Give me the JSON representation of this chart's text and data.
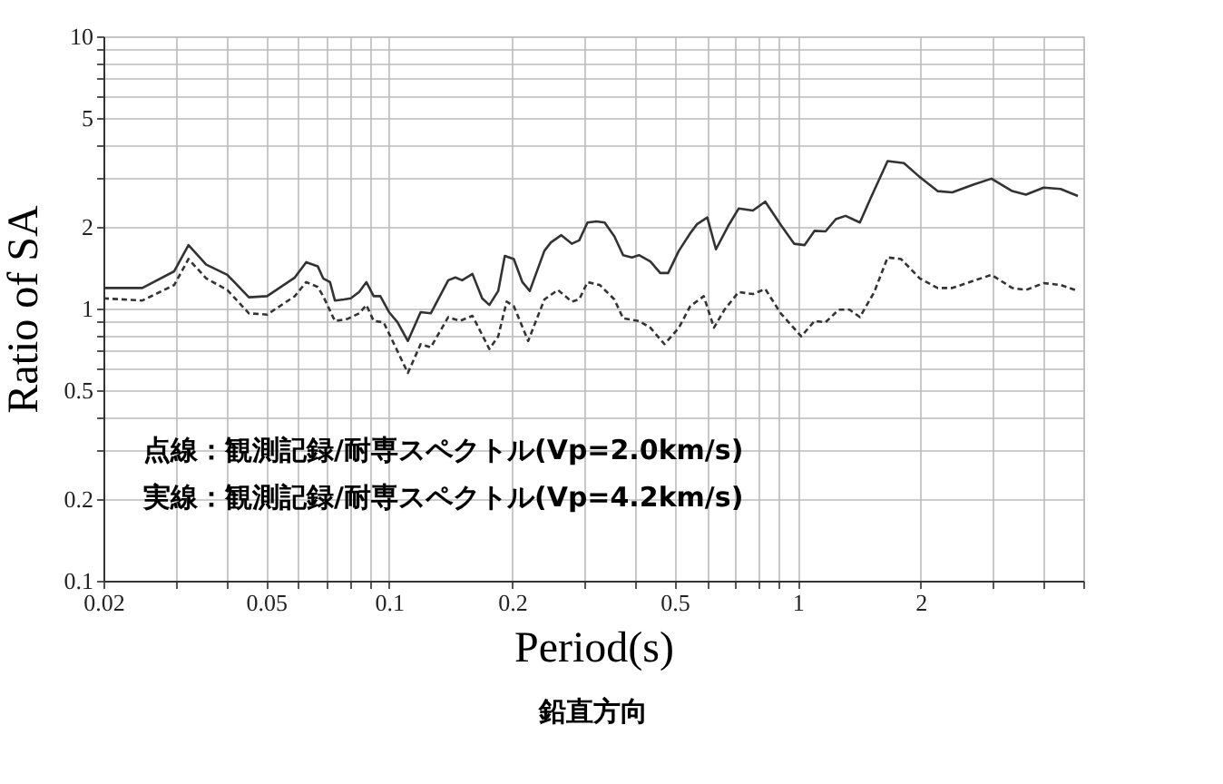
{
  "chart_data": {
    "type": "line",
    "xlabel": "Period(s)",
    "ylabel": "Ratio of SA",
    "log": "xy",
    "grid": true,
    "xlim": [
      0.02,
      5
    ],
    "ylim": [
      0.1,
      10
    ],
    "xticks": [
      0.02,
      0.05,
      0.1,
      0.2,
      0.5,
      1,
      2
    ],
    "yticks": [
      0.1,
      0.2,
      0.5,
      1,
      2,
      5,
      10
    ],
    "annotations": [
      "点線：観測記録/耐専スペクトル(Vp=2.0km/s)",
      "実線：観測記録/耐専スペクトル(Vp=4.2km/s)",
      "鉛直方向"
    ],
    "series": [
      {
        "color": "#333333",
        "line_style": "solid",
        "x": [
          0.02,
          0.0249,
          0.0298,
          0.0323,
          0.0357,
          0.0402,
          0.0454,
          0.0503,
          0.0588,
          0.0627,
          0.0669,
          0.069,
          0.0717,
          0.0737,
          0.0776,
          0.0806,
          0.0845,
          0.088,
          0.0917,
          0.0952,
          0.1,
          0.1049,
          0.1112,
          0.1195,
          0.1265,
          0.1396,
          0.1453,
          0.151,
          0.16,
          0.169,
          0.176,
          0.185,
          0.192,
          0.202,
          0.212,
          0.221,
          0.24,
          0.249,
          0.264,
          0.28,
          0.292,
          0.306,
          0.322,
          0.337,
          0.356,
          0.374,
          0.393,
          0.409,
          0.436,
          0.461,
          0.482,
          0.512,
          0.546,
          0.567,
          0.601,
          0.631,
          0.676,
          0.717,
          0.777,
          0.833,
          0.909,
          0.98,
          1.04,
          1.1,
          1.17,
          1.24,
          1.31,
          1.42,
          1.51,
          1.66,
          1.82,
          1.99,
          2.2,
          2.39,
          2.69,
          2.98,
          3.35,
          3.62,
          4.0,
          4.4,
          4.85
        ],
        "values": [
          1.19,
          1.19,
          1.37,
          1.71,
          1.45,
          1.33,
          1.1,
          1.11,
          1.3,
          1.48,
          1.43,
          1.29,
          1.25,
          1.07,
          1.08,
          1.09,
          1.15,
          1.25,
          1.11,
          1.11,
          0.97,
          0.89,
          0.76,
          0.97,
          0.96,
          1.27,
          1.3,
          1.27,
          1.34,
          1.09,
          1.03,
          1.16,
          1.56,
          1.52,
          1.25,
          1.16,
          1.63,
          1.75,
          1.86,
          1.73,
          1.78,
          2.07,
          2.09,
          2.07,
          1.84,
          1.57,
          1.54,
          1.57,
          1.49,
          1.35,
          1.35,
          1.63,
          1.89,
          2.04,
          2.16,
          1.65,
          2.01,
          2.33,
          2.29,
          2.47,
          2.03,
          1.73,
          1.71,
          1.93,
          1.92,
          2.13,
          2.19,
          2.07,
          2.55,
          3.48,
          3.42,
          3.04,
          2.7,
          2.67,
          2.85,
          3.0,
          2.7,
          2.62,
          2.78,
          2.75,
          2.59
        ]
      },
      {
        "color": "#333333",
        "line_style": "dashed",
        "x": [
          0.02,
          0.0249,
          0.0298,
          0.0323,
          0.0357,
          0.0402,
          0.0454,
          0.0503,
          0.0588,
          0.0627,
          0.0669,
          0.069,
          0.0737,
          0.079,
          0.0845,
          0.088,
          0.0917,
          0.097,
          0.102,
          0.1112,
          0.1195,
          0.1265,
          0.1396,
          0.149,
          0.16,
          0.176,
          0.185,
          0.194,
          0.202,
          0.219,
          0.24,
          0.259,
          0.28,
          0.292,
          0.306,
          0.328,
          0.356,
          0.374,
          0.409,
          0.436,
          0.472,
          0.512,
          0.546,
          0.589,
          0.624,
          0.662,
          0.717,
          0.777,
          0.833,
          0.909,
          1.02,
          1.1,
          1.17,
          1.26,
          1.34,
          1.42,
          1.54,
          1.66,
          1.79,
          1.99,
          2.2,
          2.39,
          2.98,
          3.35,
          3.62,
          4.0,
          4.4,
          4.85
        ],
        "values": [
          1.09,
          1.07,
          1.22,
          1.52,
          1.29,
          1.17,
          0.96,
          0.95,
          1.11,
          1.25,
          1.2,
          1.11,
          0.9,
          0.915,
          0.96,
          1.03,
          0.9,
          0.89,
          0.76,
          0.58,
          0.74,
          0.72,
          0.93,
          0.9,
          0.94,
          0.71,
          0.79,
          1.06,
          1.02,
          0.76,
          1.08,
          1.17,
          1.06,
          1.08,
          1.25,
          1.22,
          1.08,
          0.92,
          0.9,
          0.85,
          0.74,
          0.85,
          1.02,
          1.11,
          0.85,
          0.99,
          1.15,
          1.13,
          1.18,
          0.96,
          0.79,
          0.9,
          0.89,
          0.99,
          0.99,
          0.93,
          1.15,
          1.54,
          1.52,
          1.29,
          1.19,
          1.19,
          1.33,
          1.19,
          1.17,
          1.24,
          1.22,
          1.16
        ]
      }
    ]
  }
}
